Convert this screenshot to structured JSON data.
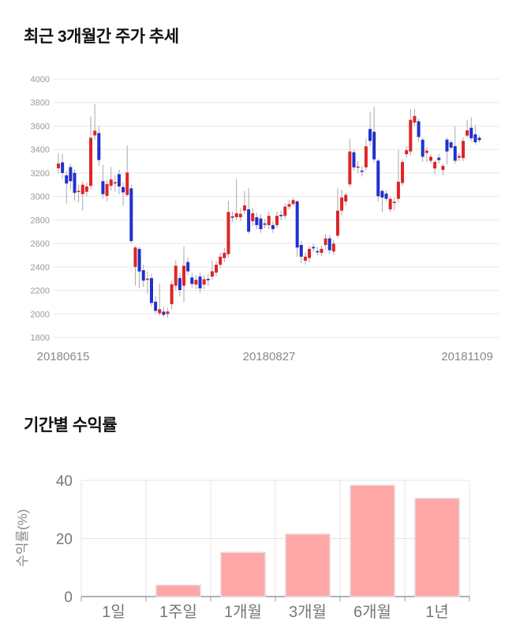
{
  "price_section": {
    "title": "최근 3개월간 주가 추세"
  },
  "returns_section": {
    "title": "기간별 수익률"
  },
  "chart_data": [
    {
      "type": "candlestick",
      "title": "최근 3개월간 주가 추세",
      "xlabel": "",
      "ylabel": "",
      "ylim": [
        1800,
        4000
      ],
      "y_ticks": [
        4000,
        3800,
        3600,
        3400,
        3200,
        3000,
        2800,
        2600,
        2400,
        2200,
        2000,
        1800
      ],
      "x_tick_labels": [
        "20180615",
        "20180827",
        "20181109"
      ],
      "grid": true,
      "up_color": "#e02424",
      "down_color": "#2130cc",
      "wick_color": "#a8a8a8",
      "ohlc_legend": "arrays are [open, high, low, close]",
      "ohlc": [
        [
          3240,
          3370,
          3200,
          3280
        ],
        [
          3290,
          3360,
          3150,
          3200
        ],
        [
          3180,
          3220,
          2940,
          3110
        ],
        [
          3250,
          3280,
          3060,
          3130
        ],
        [
          3200,
          3230,
          2965,
          3030
        ],
        [
          3040,
          3100,
          2950,
          3048
        ],
        [
          3020,
          3130,
          2880,
          3100
        ],
        [
          3040,
          3120,
          3000,
          3085
        ],
        [
          3090,
          3680,
          3060,
          3500
        ],
        [
          3520,
          3790,
          3480,
          3560
        ],
        [
          3540,
          3600,
          3260,
          3310
        ],
        [
          3130,
          3270,
          2980,
          3020
        ],
        [
          3005,
          3140,
          2960,
          3105
        ],
        [
          3090,
          3250,
          3050,
          3145
        ],
        [
          3110,
          3180,
          3040,
          3122
        ],
        [
          3190,
          3230,
          3020,
          3085
        ],
        [
          3080,
          3120,
          2920,
          3035
        ],
        [
          3013,
          3435,
          3000,
          3204
        ],
        [
          3069,
          3100,
          2600,
          2620
        ],
        [
          2400,
          2580,
          2240,
          2565
        ],
        [
          2553,
          2570,
          2220,
          2361
        ],
        [
          2372,
          2420,
          2230,
          2283
        ],
        [
          2294,
          2360,
          2170,
          2300
        ],
        [
          2305,
          2340,
          2060,
          2093
        ],
        [
          2104,
          2150,
          2000,
          2026
        ],
        [
          2005,
          2260,
          1985,
          2040
        ],
        [
          2019,
          2060,
          1975,
          1992
        ],
        [
          2000,
          2050,
          1970,
          2020
        ],
        [
          2083,
          2280,
          2040,
          2252
        ],
        [
          2240,
          2455,
          2200,
          2410
        ],
        [
          2305,
          2350,
          2150,
          2203
        ],
        [
          2240,
          2575,
          2100,
          2410
        ],
        [
          2441,
          2480,
          2330,
          2362
        ],
        [
          2310,
          2350,
          2220,
          2255
        ],
        [
          2250,
          2330,
          2210,
          2290
        ],
        [
          2318,
          2350,
          2180,
          2217
        ],
        [
          2250,
          2330,
          2210,
          2295
        ],
        [
          2298,
          2340,
          2240,
          2290
        ],
        [
          2318,
          2453,
          2290,
          2363
        ],
        [
          2352,
          2450,
          2320,
          2419
        ],
        [
          2419,
          2520,
          2390,
          2487
        ],
        [
          2475,
          2560,
          2440,
          2520
        ],
        [
          2509,
          2963,
          2480,
          2868
        ],
        [
          2830,
          2870,
          2780,
          2823
        ],
        [
          2823,
          3148,
          2800,
          2857
        ],
        [
          2823,
          2900,
          2790,
          2852
        ],
        [
          2879,
          3047,
          2850,
          2924
        ],
        [
          2890,
          3070,
          2680,
          2700
        ],
        [
          2790,
          2900,
          2750,
          2857
        ],
        [
          2823,
          2860,
          2720,
          2756
        ],
        [
          2812,
          2850,
          2690,
          2722
        ],
        [
          2770,
          2810,
          2730,
          2764
        ],
        [
          2756,
          2870,
          2720,
          2835
        ],
        [
          2756,
          2790,
          2690,
          2722
        ],
        [
          2756,
          2870,
          2730,
          2835
        ],
        [
          2843,
          2880,
          2800,
          2835
        ],
        [
          2835,
          2940,
          2810,
          2913
        ],
        [
          2913,
          2970,
          2890,
          2935
        ],
        [
          2935,
          2990,
          2920,
          2969
        ],
        [
          2958,
          2970,
          2487,
          2565
        ],
        [
          2587,
          2620,
          2431,
          2487
        ],
        [
          2453,
          2520,
          2420,
          2487
        ],
        [
          2476,
          2580,
          2440,
          2554
        ],
        [
          2570,
          2600,
          2530,
          2558
        ],
        [
          2535,
          2570,
          2500,
          2530
        ],
        [
          2520,
          2580,
          2490,
          2554
        ],
        [
          2587,
          2680,
          2550,
          2643
        ],
        [
          2643,
          2670,
          2510,
          2542
        ],
        [
          2531,
          2630,
          2500,
          2598
        ],
        [
          2666,
          3069,
          2650,
          2879
        ],
        [
          2879,
          3058,
          2840,
          2991
        ],
        [
          2957,
          3030,
          2920,
          3013
        ],
        [
          3103,
          3490,
          3080,
          3383
        ],
        [
          3376,
          3400,
          3220,
          3248
        ],
        [
          3250,
          3300,
          3200,
          3255
        ],
        [
          3220,
          3260,
          3170,
          3210
        ],
        [
          3248,
          3490,
          3220,
          3427
        ],
        [
          3574,
          3720,
          3430,
          3473
        ],
        [
          3551,
          3765,
          3290,
          3316
        ],
        [
          3305,
          3320,
          2957,
          3002
        ],
        [
          3047,
          3060,
          2868,
          2991
        ],
        [
          3024,
          3050,
          2960,
          2980
        ],
        [
          2890,
          3000,
          2868,
          2980
        ],
        [
          2945,
          2990,
          2880,
          2955
        ],
        [
          2980,
          3395,
          2950,
          3125
        ],
        [
          3114,
          3315,
          3090,
          3293
        ],
        [
          3360,
          3428,
          3330,
          3394
        ],
        [
          3383,
          3742,
          3349,
          3652
        ],
        [
          3629,
          3747,
          3600,
          3685
        ],
        [
          3640,
          3660,
          3461,
          3506
        ],
        [
          3483,
          3500,
          3293,
          3338
        ],
        [
          3370,
          3420,
          3293,
          3390
        ],
        [
          3304,
          3360,
          3280,
          3338
        ],
        [
          3238,
          3310,
          3192,
          3294
        ],
        [
          3330,
          3360,
          3280,
          3310
        ],
        [
          3226,
          3280,
          3181,
          3260
        ],
        [
          3484,
          3500,
          3272,
          3383
        ],
        [
          3461,
          3480,
          3400,
          3416
        ],
        [
          3428,
          3596,
          3280,
          3304
        ],
        [
          3330,
          3370,
          3300,
          3345
        ],
        [
          3327,
          3500,
          3300,
          3473
        ],
        [
          3518,
          3652,
          3500,
          3563
        ],
        [
          3585,
          3675,
          3470,
          3495
        ],
        [
          3529,
          3607,
          3440,
          3462
        ],
        [
          3500,
          3520,
          3460,
          3480
        ]
      ]
    },
    {
      "type": "bar",
      "title": "기간별 수익률",
      "categories": [
        "1일",
        "1주일",
        "1개월",
        "3개월",
        "6개월",
        "1년"
      ],
      "values": [
        0,
        3.9,
        15.2,
        21.5,
        38.3,
        33.8
      ],
      "xlabel": "",
      "ylabel": "수익률(%)",
      "ylim": [
        0,
        40
      ],
      "y_ticks": [
        0,
        20,
        40
      ],
      "grid": true,
      "legend": "none",
      "bar_color": "#ffa6a6",
      "bar_border_color": "#e4dcdc"
    }
  ]
}
